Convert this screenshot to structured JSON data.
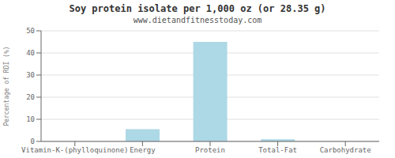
{
  "chart_data": {
    "type": "bar",
    "title": "Soy protein isolate per 1,000 oz (or 28.35 g)",
    "subtitle": "www.dietandfitnesstoday.com",
    "categories": [
      "Vitamin-K-(phylloquinone)",
      "Energy",
      "Protein",
      "Total-Fat",
      "Carbohydrate"
    ],
    "values": [
      0,
      5.5,
      45,
      1.0,
      0
    ],
    "color": "#add8e6",
    "ylabel": "Percentage of RDI (%)",
    "ylim": [
      0,
      50
    ],
    "yticks": [
      0,
      10,
      20,
      30,
      40,
      50
    ],
    "grid": true
  }
}
